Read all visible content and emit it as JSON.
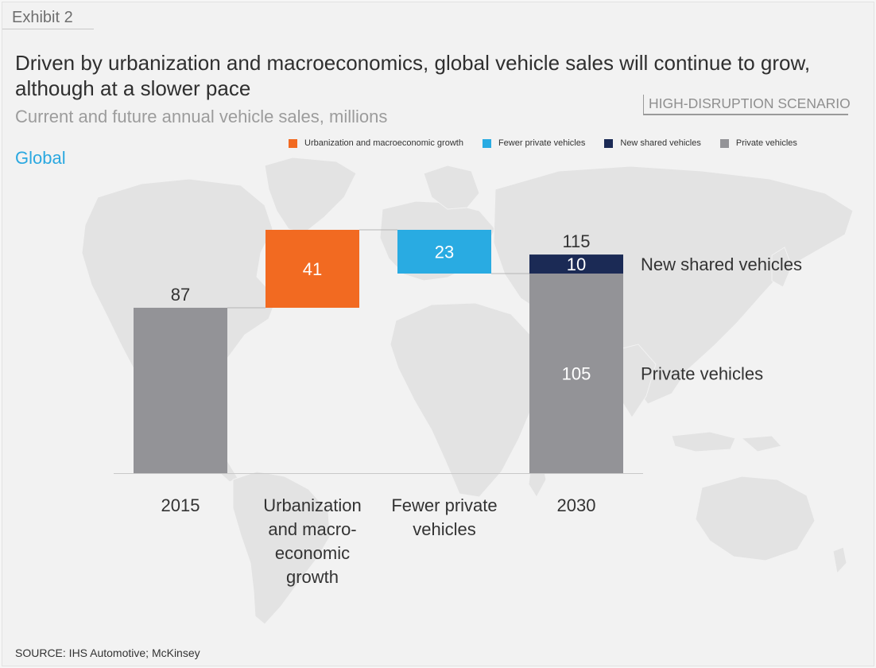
{
  "header": {
    "exhibit": "Exhibit 2",
    "title": "Driven by urbanization and macroeconomics, global vehicle sales will continue to grow, although at a slower pace",
    "subtitle": "Current and future annual vehicle sales, millions",
    "scenario": "HIGH-DISRUPTION SCENARIO",
    "region": "Global"
  },
  "legend": [
    {
      "label": "Urbanization and macroeconomic growth",
      "color": "#f26a21"
    },
    {
      "label": "Fewer private vehicles",
      "color": "#29abe2"
    },
    {
      "label": "New shared vehicles",
      "color": "#1b2a55"
    },
    {
      "label": "Private vehicles",
      "color": "#939397"
    }
  ],
  "chart_data": {
    "type": "bar",
    "subtype": "waterfall",
    "title": "Driven by urbanization and macroeconomics, global vehicle sales will continue to grow, although at a slower pace",
    "subtitle": "Current and future annual vehicle sales, millions",
    "categories": [
      "2015",
      "Urbanization and macro-economic growth",
      "Fewer private vehicles",
      "2030"
    ],
    "category_lines": [
      [
        "2015"
      ],
      [
        "Urbanization",
        "and macro-",
        "economic",
        "growth"
      ],
      [
        "Fewer private",
        "vehicles"
      ],
      [
        "2030"
      ]
    ],
    "bars": [
      {
        "category": "2015",
        "kind": "total",
        "segments": [
          {
            "series": "Private vehicles",
            "start": 0,
            "end": 87,
            "label": "",
            "color": "#939397"
          }
        ],
        "top_label": "87"
      },
      {
        "category": "Urbanization and macro-economic growth",
        "kind": "increase",
        "segments": [
          {
            "series": "Urbanization and macroeconomic growth",
            "start": 87,
            "end": 128,
            "label": "41",
            "color": "#f26a21"
          }
        ],
        "top_label": ""
      },
      {
        "category": "Fewer private vehicles",
        "kind": "decrease",
        "segments": [
          {
            "series": "Fewer private vehicles",
            "start": 105,
            "end": 128,
            "label": "23",
            "color": "#29abe2"
          }
        ],
        "top_label": ""
      },
      {
        "category": "2030",
        "kind": "total",
        "segments": [
          {
            "series": "Private vehicles",
            "start": 0,
            "end": 105,
            "label": "105",
            "color": "#939397"
          },
          {
            "series": "New shared vehicles",
            "start": 105,
            "end": 115,
            "label": "10",
            "color": "#1b2a55"
          }
        ],
        "top_label": "115"
      }
    ],
    "side_labels": [
      {
        "text": "New shared vehicles",
        "value": 110
      },
      {
        "text": "Private vehicles",
        "value": 52.5
      }
    ],
    "ylim": [
      0,
      128
    ],
    "xlabel": "",
    "ylabel": "",
    "legend_position": "top-right",
    "grid": false,
    "background": "world map"
  },
  "footer": {
    "source": "SOURCE: IHS Automotive; McKinsey"
  }
}
